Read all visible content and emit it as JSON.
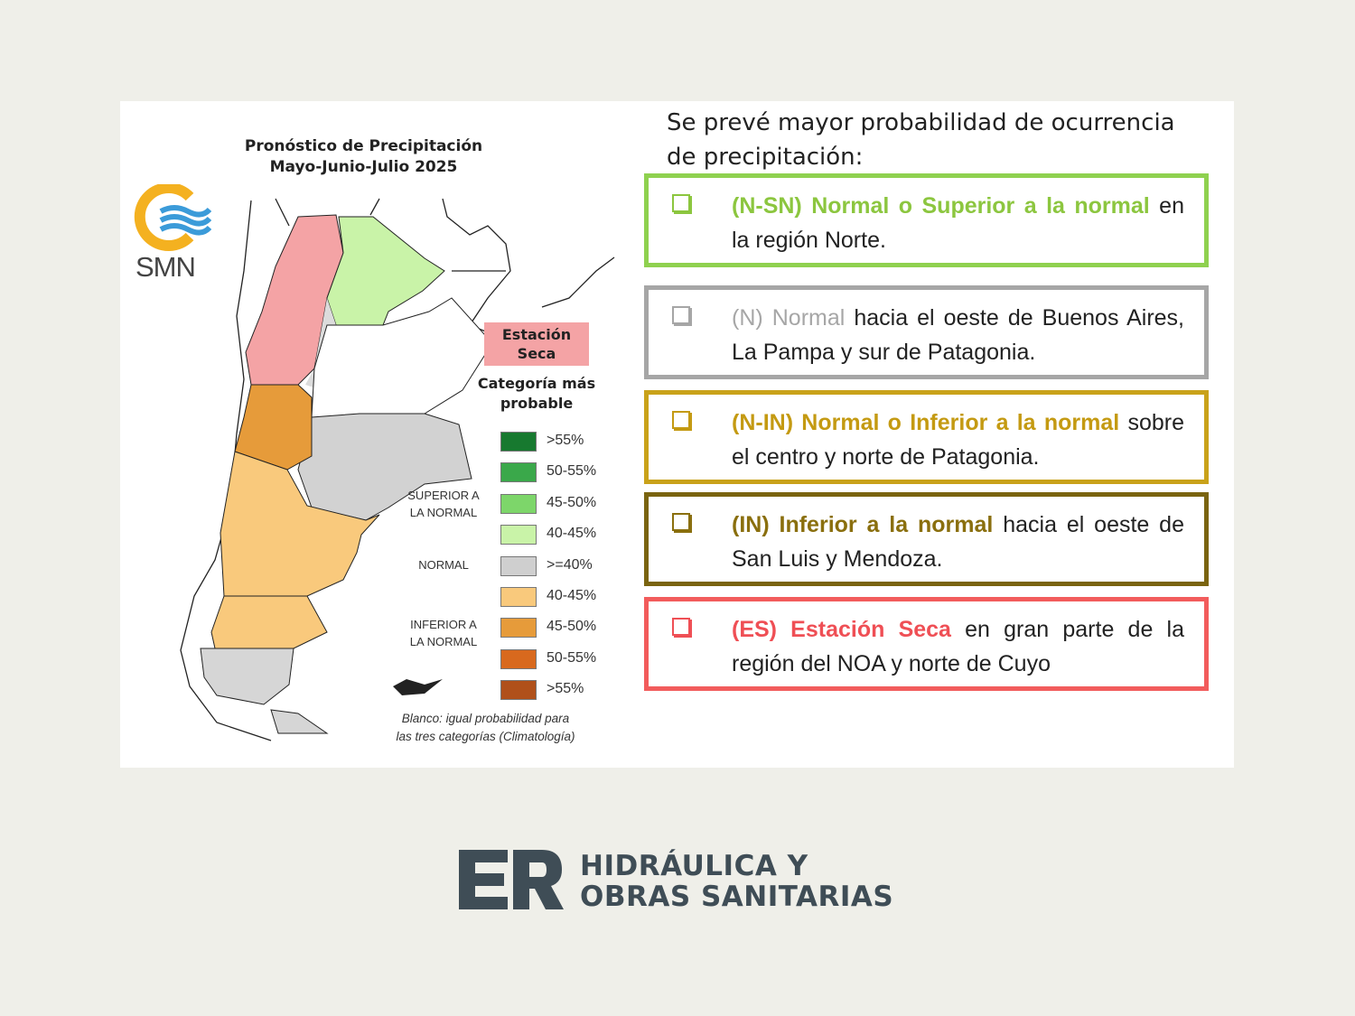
{
  "map": {
    "title_line1": "Pronóstico de Precipitación",
    "title_line2": "Mayo-Junio-Julio 2025",
    "logo_text": "SMN",
    "dry_season_label_1": "Estación",
    "dry_season_label_2": "Seca",
    "dry_season_color": "#f4a3a5",
    "legend_title_1": "Categoría más",
    "legend_title_2": "probable",
    "legend": [
      {
        "label": ">55%",
        "color": "#17792f"
      },
      {
        "label": "50-55%",
        "color": "#3aa84a"
      },
      {
        "label": "45-50%",
        "color": "#7dd66a"
      },
      {
        "label": "40-45%",
        "color": "#c9f3a8"
      },
      {
        "label": ">=40%",
        "color": "#cfcfcf"
      },
      {
        "label": "40-45%",
        "color": "#f9c97c"
      },
      {
        "label": "45-50%",
        "color": "#e69b3a"
      },
      {
        "label": "50-55%",
        "color": "#d8691e"
      },
      {
        "label": ">55%",
        "color": "#b0501a"
      }
    ],
    "category_superior_1": "SUPERIOR A",
    "category_superior_2": "LA NORMAL",
    "category_normal": "NORMAL",
    "category_inferior_1": "INFERIOR A",
    "category_inferior_2": "LA NORMAL",
    "note_1": "Blanco: igual probabilidad para",
    "note_2": "las tres categorías (Climatología)"
  },
  "intro": "Se prevé mayor probabilidad de ocurrencia de precipitación:",
  "items": [
    {
      "highlight": "(N-SN) Normal o Superior a la normal",
      "rest": " en la región Norte.",
      "color": "#8cc63f",
      "border": "#8fd14f"
    },
    {
      "highlight": "(N) Normal",
      "rest": " hacia el oeste de Buenos Aires, La Pampa y sur de Patagonia.",
      "color": "#a6a6a6",
      "border": "#a6a6a6"
    },
    {
      "highlight": "(N-IN) Normal o Inferior a la normal",
      "rest": " sobre el centro y norte de Patagonia.",
      "color": "#c49a12",
      "border": "#c9a21a"
    },
    {
      "highlight": "(IN) Inferior a la normal",
      "rest": " hacia el oeste de San Luis y Mendoza.",
      "color": "#8a6f0e",
      "border": "#7a6410"
    },
    {
      "highlight": "(ES) Estación Seca",
      "rest": " en gran parte de la región del NOA y norte de Cuyo",
      "color": "#ef4f55",
      "border": "#f25c5c"
    }
  ],
  "footer": {
    "logo_letters": "ER",
    "line1": "HIDRÁULICA Y",
    "line2": "OBRAS SANITARIAS",
    "color": "#3f4d56"
  }
}
